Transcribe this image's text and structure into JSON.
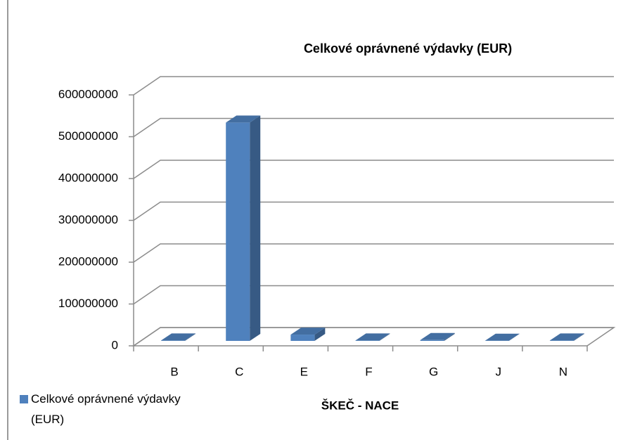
{
  "chart_data": {
    "type": "bar3d",
    "title": "Celkové oprávnené výdavky (EUR)",
    "x_label": "ŠKEČ - NACE",
    "categories": [
      "B",
      "C",
      "E",
      "F",
      "G",
      "J",
      "N"
    ],
    "series": [
      {
        "name": "Celkové oprávnené výdavky (EUR)",
        "color": "#4f81bd",
        "values": [
          1000000,
          522000000,
          15000000,
          1000000,
          2000000,
          500000,
          1000000
        ]
      }
    ],
    "ylim": [
      0,
      600000000
    ],
    "yticks": [
      0,
      100000000,
      200000000,
      300000000,
      400000000,
      500000000,
      600000000
    ],
    "grid": true,
    "legend": "bottom-left"
  }
}
